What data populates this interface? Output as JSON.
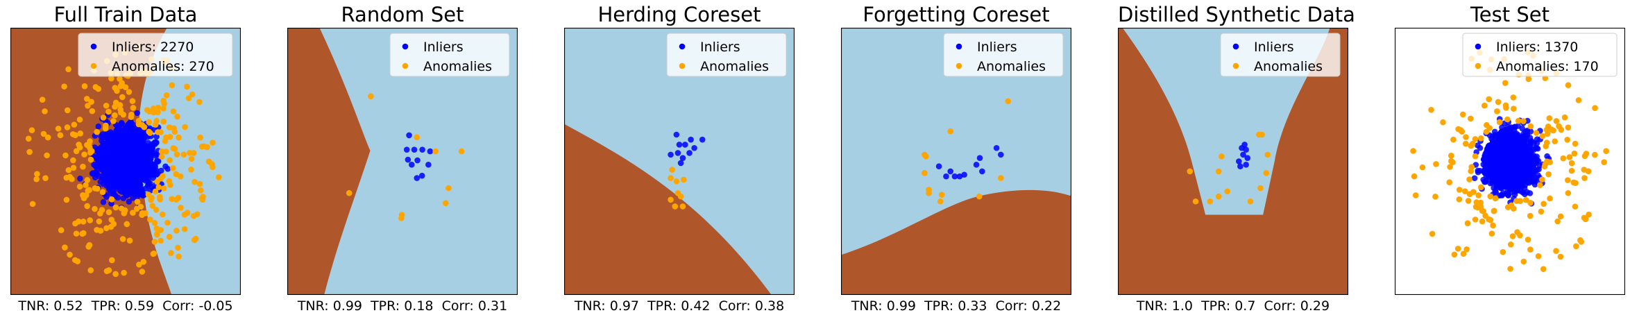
{
  "colors": {
    "anomaly_region": "#b0562b",
    "inlier_region": "#a6cfe3",
    "inliers": "#0000ff",
    "anomalies": "#ffa500"
  },
  "chart_data": [
    {
      "type": "scatter",
      "title": "Full Train Data",
      "metrics": "TNR: 0.52  TPR: 0.59  Corr: -0.05",
      "background": "decision-regions",
      "legend": {
        "placement": "top-right",
        "entries": [
          "Inliers: 2270",
          "Anomalies: 270"
        ]
      },
      "grid": false,
      "series": [
        {
          "name": "Inliers: 2270",
          "distribution": "cluster",
          "count": 2270,
          "center": [
            0.0,
            0.0
          ],
          "radius": 1.0
        },
        {
          "name": "Anomalies: 270",
          "distribution": "ring",
          "count": 270,
          "inner_radius": 1.2,
          "outer_radius": 3.5
        }
      ]
    },
    {
      "type": "scatter",
      "title": "Random Set",
      "metrics": "TNR: 0.99  TPR: 0.18  Corr: 0.31",
      "background": "decision-regions",
      "legend": {
        "placement": "top-right",
        "entries": [
          "Inliers",
          "Anomalies"
        ]
      },
      "grid": false,
      "series": [
        {
          "name": "Inliers",
          "points": [
            [
              0.23,
              0.78
            ],
            [
              0.15,
              0.35
            ],
            [
              0.19,
              0.05
            ],
            [
              0.32,
              -0.1
            ],
            [
              0.41,
              0.35
            ],
            [
              0.52,
              0.03
            ],
            [
              0.68,
              -0.43
            ],
            [
              0.96,
              0.3
            ],
            [
              0.9,
              -0.1
            ],
            [
              0.69,
              0.35
            ],
            [
              0.5,
              -0.5
            ]
          ]
        },
        {
          "name": "Anomalies",
          "points": [
            [
              -1.1,
              1.95
            ],
            [
              -1.85,
              -0.95
            ],
            [
              1.6,
              -0.8
            ],
            [
              1.5,
              -1.25
            ],
            [
              2.05,
              0.3
            ],
            [
              -0.02,
              -1.6
            ],
            [
              -0.04,
              -1.7
            ],
            [
              0.5,
              0.72
            ],
            [
              1.15,
              0.3
            ]
          ]
        }
      ]
    },
    {
      "type": "scatter",
      "title": "Herding Coreset",
      "metrics": "TNR: 0.97  TPR: 0.42  Corr: 0.38",
      "background": "decision-regions",
      "legend": {
        "placement": "top-right",
        "entries": [
          "Inliers",
          "Anomalies"
        ]
      },
      "grid": false,
      "series": [
        {
          "name": "Inliers",
          "points": [
            [
              0.8,
              0.65
            ],
            [
              0.52,
              0.4
            ],
            [
              0.4,
              0.65
            ],
            [
              0.05,
              -0.05
            ],
            [
              0.12,
              0.1
            ],
            [
              -0.05,
              0.25
            ],
            [
              0.0,
              0.5
            ],
            [
              0.2,
              0.5
            ],
            [
              -0.1,
              0.8
            ],
            [
              -0.3,
              0.2
            ],
            [
              0.35,
              0.25
            ]
          ]
        },
        {
          "name": "Anomalies",
          "points": [
            [
              -0.3,
              -0.5
            ],
            [
              -0.25,
              -0.25
            ],
            [
              -0.1,
              -0.6
            ],
            [
              0.05,
              -1.05
            ],
            [
              -0.3,
              -1.15
            ],
            [
              -0.05,
              -0.95
            ],
            [
              0.12,
              -1.35
            ],
            [
              -0.15,
              -1.35
            ],
            [
              0.15,
              -0.55
            ]
          ]
        }
      ]
    },
    {
      "type": "scatter",
      "title": "Forgetting Coreset",
      "metrics": "TNR: 0.99  TPR: 0.33  Corr: 0.22",
      "background": "decision-regions",
      "legend": {
        "placement": "top-right",
        "entries": [
          "Inliers",
          "Anomalies"
        ]
      },
      "grid": false,
      "series": [
        {
          "name": "Inliers",
          "points": [
            [
              -0.6,
              -0.15
            ],
            [
              -0.35,
              -0.45
            ],
            [
              -0.2,
              -0.3
            ],
            [
              -0.05,
              -0.45
            ],
            [
              0.12,
              -0.45
            ],
            [
              0.28,
              -0.4
            ],
            [
              0.82,
              0.1
            ],
            [
              0.9,
              -0.3
            ],
            [
              0.7,
              -0.1
            ],
            [
              1.4,
              0.4
            ],
            [
              1.55,
              0.2
            ]
          ]
        },
        {
          "name": "Anomalies",
          "points": [
            [
              -0.2,
              0.9
            ],
            [
              -1.1,
              0.2
            ],
            [
              -1.05,
              0.15
            ],
            [
              -1.1,
              -0.35
            ],
            [
              -0.95,
              -0.95
            ],
            [
              -0.55,
              -1.2
            ],
            [
              -0.95,
              -0.85
            ],
            [
              0.8,
              -1.05
            ],
            [
              1.8,
              1.8
            ],
            [
              -0.5,
              -1.0
            ],
            [
              1.55,
              -0.5
            ]
          ]
        }
      ]
    },
    {
      "type": "scatter",
      "title": "Distilled Synthetic Data",
      "metrics": "TNR: 1.0  TPR: 0.7  Corr: 0.29",
      "background": "decision-regions",
      "legend": {
        "placement": "top-right",
        "entries": [
          "Inliers",
          "Anomalies"
        ]
      },
      "grid": false,
      "series": [
        {
          "name": "Inliers",
          "points": [
            [
              0.4,
              0.5
            ],
            [
              0.3,
              0.4
            ],
            [
              0.45,
              0.35
            ],
            [
              0.35,
              0.2
            ],
            [
              0.5,
              0.1
            ],
            [
              0.2,
              0.0
            ],
            [
              0.25,
              -0.15
            ],
            [
              0.45,
              -0.1
            ]
          ]
        },
        {
          "name": "Anomalies",
          "points": [
            [
              -0.4,
              0.15
            ],
            [
              -0.5,
              -0.3
            ],
            [
              0.9,
              0.8
            ],
            [
              1.0,
              0.8
            ],
            [
              1.2,
              0.2
            ],
            [
              1.15,
              -0.35
            ],
            [
              0.95,
              -0.8
            ],
            [
              -0.2,
              -0.9
            ],
            [
              -0.5,
              -1.05
            ],
            [
              -0.8,
              -1.2
            ],
            [
              0.6,
              -1.2
            ],
            [
              -1.3,
              -1.2
            ],
            [
              -1.5,
              -0.3
            ]
          ]
        }
      ]
    },
    {
      "type": "scatter",
      "title": "Test Set",
      "metrics": "",
      "background": "none",
      "legend": {
        "placement": "top-right",
        "entries": [
          "Inliers: 1370",
          "Anomalies: 170"
        ]
      },
      "grid": false,
      "series": [
        {
          "name": "Inliers: 1370",
          "distribution": "cluster",
          "count": 1370,
          "center": [
            0.0,
            0.0
          ],
          "radius": 1.0
        },
        {
          "name": "Anomalies: 170",
          "distribution": "ring",
          "count": 170,
          "inner_radius": 1.2,
          "outer_radius": 3.5
        }
      ]
    }
  ]
}
